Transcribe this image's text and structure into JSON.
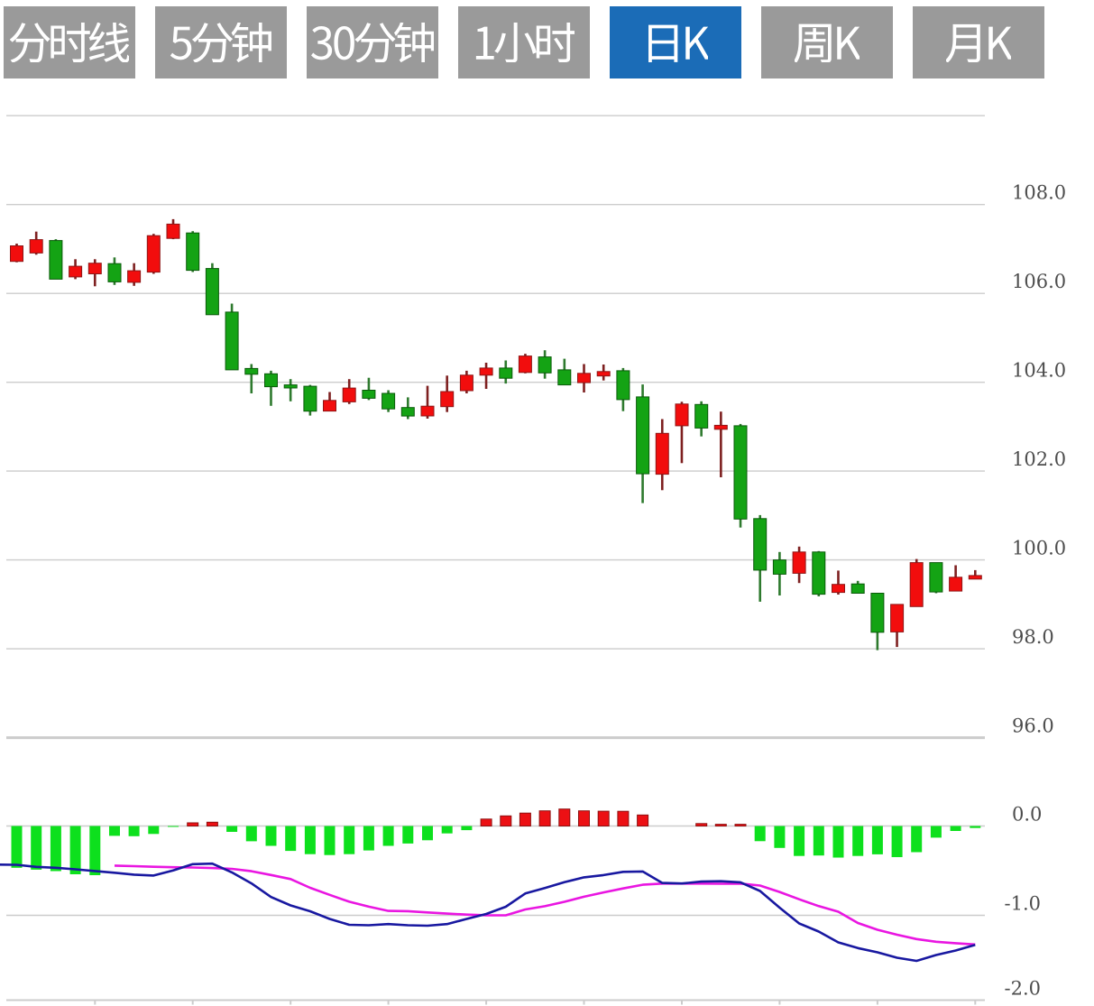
{
  "toolbar": {
    "tabs": [
      {
        "key": "timeshare",
        "label": "分时线",
        "active": false
      },
      {
        "key": "5min",
        "label": "5分钟",
        "active": false
      },
      {
        "key": "30min",
        "label": "30分钟",
        "active": false
      },
      {
        "key": "1hour",
        "label": "1小时",
        "active": false
      },
      {
        "key": "daily-k",
        "label": "日K",
        "active": true
      },
      {
        "key": "weekly-k",
        "label": "周K",
        "active": false
      },
      {
        "key": "monthly-k",
        "label": "月K",
        "active": false
      }
    ],
    "active_color": "#1b6cb7",
    "inactive_color": "#9a9a9a",
    "label_color": "#ffffff"
  },
  "chart_data": {
    "type": "candlestick",
    "panes": [
      "price-candlestick",
      "macd-indicator"
    ],
    "price_axis": {
      "side": "right",
      "tick_labels": [
        "108.0",
        "106.0",
        "104.0",
        "102.0",
        "100.0",
        "98.0",
        "96.0"
      ],
      "tick_values": [
        108.0,
        106.0,
        104.0,
        102.0,
        100.0,
        98.0,
        96.0
      ],
      "range": [
        96.0,
        110.0
      ],
      "grid": true
    },
    "macd_axis": {
      "side": "right",
      "tick_labels": [
        "0.0",
        "-1.0",
        "-2.0"
      ],
      "tick_values": [
        0.0,
        -1.0,
        -2.0
      ],
      "range": [
        -2.0,
        0.0
      ]
    },
    "candles": [
      {
        "open": 106.72,
        "close": 107.07,
        "high": 107.12,
        "low": 106.7
      },
      {
        "open": 106.91,
        "close": 107.21,
        "high": 107.39,
        "low": 106.87
      },
      {
        "open": 107.19,
        "close": 106.32,
        "high": 107.22,
        "low": 106.32
      },
      {
        "open": 106.37,
        "close": 106.61,
        "high": 106.77,
        "low": 106.32
      },
      {
        "open": 106.44,
        "close": 106.68,
        "high": 106.77,
        "low": 106.16
      },
      {
        "open": 106.67,
        "close": 106.26,
        "high": 106.81,
        "low": 106.19
      },
      {
        "open": 106.25,
        "close": 106.51,
        "high": 106.68,
        "low": 106.17
      },
      {
        "open": 106.48,
        "close": 107.3,
        "high": 107.34,
        "low": 106.44
      },
      {
        "open": 107.24,
        "close": 107.56,
        "high": 107.67,
        "low": 107.22
      },
      {
        "open": 107.36,
        "close": 106.52,
        "high": 107.4,
        "low": 106.48
      },
      {
        "open": 106.56,
        "close": 105.52,
        "high": 106.68,
        "low": 105.52
      },
      {
        "open": 105.58,
        "close": 104.28,
        "high": 105.77,
        "low": 104.28
      },
      {
        "open": 104.31,
        "close": 104.18,
        "high": 104.41,
        "low": 103.75
      },
      {
        "open": 104.19,
        "close": 103.9,
        "high": 104.26,
        "low": 103.47
      },
      {
        "open": 103.94,
        "close": 103.87,
        "high": 104.07,
        "low": 103.57
      },
      {
        "open": 103.91,
        "close": 103.35,
        "high": 103.94,
        "low": 103.25
      },
      {
        "open": 103.35,
        "close": 103.59,
        "high": 103.78,
        "low": 103.35
      },
      {
        "open": 103.56,
        "close": 103.87,
        "high": 104.07,
        "low": 103.51
      },
      {
        "open": 103.82,
        "close": 103.64,
        "high": 104.1,
        "low": 103.6
      },
      {
        "open": 103.75,
        "close": 103.4,
        "high": 103.82,
        "low": 103.33
      },
      {
        "open": 103.43,
        "close": 103.24,
        "high": 103.66,
        "low": 103.17
      },
      {
        "open": 103.24,
        "close": 103.46,
        "high": 103.92,
        "low": 103.18
      },
      {
        "open": 103.45,
        "close": 103.79,
        "high": 104.15,
        "low": 103.33
      },
      {
        "open": 103.81,
        "close": 104.16,
        "high": 104.26,
        "low": 103.75
      },
      {
        "open": 104.16,
        "close": 104.32,
        "high": 104.44,
        "low": 103.85
      },
      {
        "open": 104.32,
        "close": 104.09,
        "high": 104.49,
        "low": 103.97
      },
      {
        "open": 104.22,
        "close": 104.59,
        "high": 104.64,
        "low": 104.2
      },
      {
        "open": 104.57,
        "close": 104.21,
        "high": 104.72,
        "low": 104.08
      },
      {
        "open": 104.28,
        "close": 103.94,
        "high": 104.53,
        "low": 103.93
      },
      {
        "open": 103.99,
        "close": 104.2,
        "high": 104.41,
        "low": 103.77
      },
      {
        "open": 104.14,
        "close": 104.24,
        "high": 104.4,
        "low": 104.04
      },
      {
        "open": 104.26,
        "close": 103.61,
        "high": 104.32,
        "low": 103.35
      },
      {
        "open": 103.67,
        "close": 101.94,
        "high": 103.95,
        "low": 101.28
      },
      {
        "open": 101.93,
        "close": 102.85,
        "high": 103.17,
        "low": 101.57
      },
      {
        "open": 103.02,
        "close": 103.51,
        "high": 103.56,
        "low": 102.18
      },
      {
        "open": 103.5,
        "close": 102.97,
        "high": 103.57,
        "low": 102.78
      },
      {
        "open": 102.94,
        "close": 103.03,
        "high": 103.34,
        "low": 101.86
      },
      {
        "open": 103.02,
        "close": 100.92,
        "high": 103.06,
        "low": 100.73
      },
      {
        "open": 100.93,
        "close": 99.77,
        "high": 101.01,
        "low": 99.06
      },
      {
        "open": 100.0,
        "close": 99.68,
        "high": 100.18,
        "low": 99.2
      },
      {
        "open": 99.7,
        "close": 100.18,
        "high": 100.3,
        "low": 99.48
      },
      {
        "open": 100.18,
        "close": 99.23,
        "high": 100.2,
        "low": 99.18
      },
      {
        "open": 99.27,
        "close": 99.45,
        "high": 99.76,
        "low": 99.22
      },
      {
        "open": 99.46,
        "close": 99.25,
        "high": 99.53,
        "low": 99.25
      },
      {
        "open": 99.25,
        "close": 98.37,
        "high": 99.25,
        "low": 97.97
      },
      {
        "open": 98.38,
        "close": 99.0,
        "high": 99.0,
        "low": 98.04
      },
      {
        "open": 98.95,
        "close": 99.94,
        "high": 100.02,
        "low": 98.95
      },
      {
        "open": 99.94,
        "close": 99.28,
        "high": 99.94,
        "low": 99.25
      },
      {
        "open": 99.3,
        "close": 99.61,
        "high": 99.88,
        "low": 99.3
      },
      {
        "open": 99.57,
        "close": 99.65,
        "high": 99.77,
        "low": 99.57
      }
    ],
    "macd": {
      "histogram": [
        -0.468,
        -0.489,
        -0.505,
        -0.54,
        -0.551,
        -0.11,
        -0.114,
        -0.089,
        -0.01,
        0.035,
        0.042,
        -0.066,
        -0.171,
        -0.222,
        -0.279,
        -0.315,
        -0.325,
        -0.315,
        -0.274,
        -0.222,
        -0.196,
        -0.16,
        -0.083,
        -0.046,
        0.078,
        0.113,
        0.144,
        0.17,
        0.19,
        0.17,
        0.166,
        0.165,
        0.123,
        0.004,
        0.006,
        0.027,
        0.019,
        0.019,
        -0.17,
        -0.245,
        -0.335,
        -0.33,
        -0.354,
        -0.335,
        -0.317,
        -0.348,
        -0.293,
        -0.13,
        -0.056,
        -0.022
      ],
      "dif": [
        -0.434,
        -0.458,
        -0.468,
        -0.485,
        -0.504,
        -0.523,
        -0.544,
        -0.555,
        -0.497,
        -0.427,
        -0.421,
        -0.519,
        -0.642,
        -0.795,
        -0.889,
        -0.955,
        -1.04,
        -1.106,
        -1.111,
        -1.098,
        -1.111,
        -1.116,
        -1.098,
        -1.04,
        -0.985,
        -0.904,
        -0.756,
        -0.695,
        -0.629,
        -0.575,
        -0.549,
        -0.513,
        -0.509,
        -0.637,
        -0.643,
        -0.622,
        -0.618,
        -0.63,
        -0.727,
        -0.914,
        -1.091,
        -1.182,
        -1.303,
        -1.367,
        -1.414,
        -1.475,
        -1.51,
        -1.444,
        -1.394,
        -1.331
      ],
      "dea": [
        null,
        null,
        null,
        null,
        null,
        -0.443,
        -0.449,
        -0.457,
        -0.462,
        -0.465,
        -0.471,
        -0.48,
        -0.506,
        -0.548,
        -0.594,
        -0.692,
        -0.771,
        -0.847,
        -0.903,
        -0.951,
        -0.954,
        -0.968,
        -0.981,
        -0.992,
        -0.999,
        -1.0,
        -0.934,
        -0.898,
        -0.848,
        -0.792,
        -0.743,
        -0.699,
        -0.658,
        -0.644,
        -0.644,
        -0.644,
        -0.646,
        -0.644,
        -0.667,
        -0.738,
        -0.82,
        -0.897,
        -0.96,
        -1.086,
        -1.162,
        -1.217,
        -1.266,
        -1.296,
        -1.312,
        -1.326
      ],
      "dif_left_edge": -0.432
    },
    "colors": {
      "bull_body": "#f20d0d",
      "bull_border": "#8e1515",
      "bull_wick": "#7e2020",
      "bear_body": "#14a314",
      "bear_border": "#0a5a0a",
      "bear_wick": "#2e7a2e",
      "hist_up": "#ec1014",
      "hist_up_border": "#8e1111",
      "hist_down": "#0de01d",
      "dif_line": "#1818a0",
      "dea_line": "#e916e1",
      "grid": "#cccccc",
      "axis_label": "#4d4d4d"
    }
  }
}
